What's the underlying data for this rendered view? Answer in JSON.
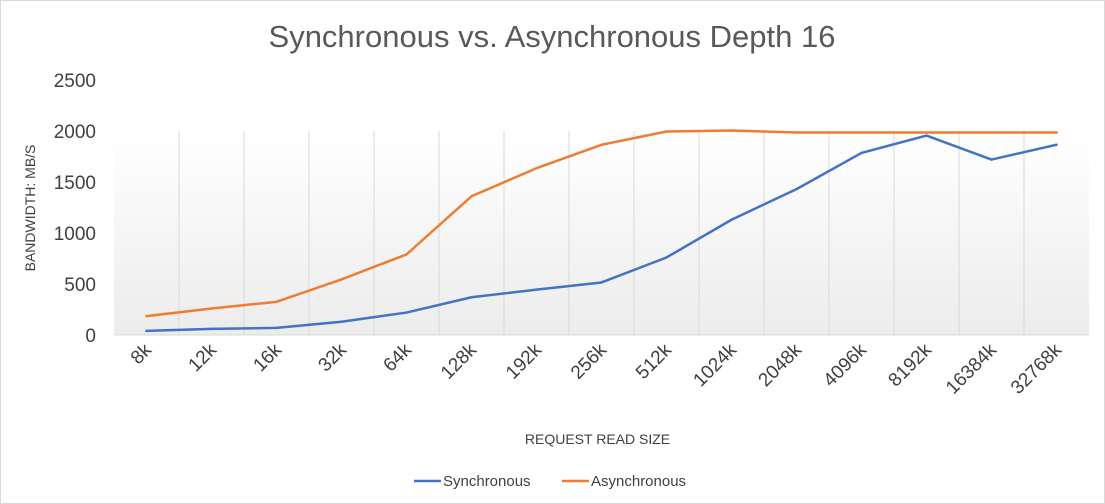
{
  "chart_data": {
    "type": "line",
    "title": "Synchronous vs. Asynchronous Depth 16",
    "xlabel": "REQUEST READ SIZE",
    "ylabel": "BANDWIDTH: MB/S",
    "categories": [
      "8k",
      "12k",
      "16k",
      "32k",
      "64k",
      "128k",
      "192k",
      "256k",
      "512k",
      "1024k",
      "2048k",
      "4096k",
      "8192k",
      "16384k",
      "32768k"
    ],
    "yticks": [
      "0",
      "500",
      "1000",
      "1500",
      "2000",
      "2500"
    ],
    "ylim": [
      0,
      2500
    ],
    "grid": "vertical",
    "legend_position": "bottom",
    "series": [
      {
        "name": "Synchronous",
        "color": "#4472c4",
        "values": [
          40,
          60,
          70,
          130,
          220,
          370,
          445,
          515,
          760,
          1130,
          1430,
          1785,
          1955,
          1720,
          1865
        ]
      },
      {
        "name": "Asynchronous",
        "color": "#ed7d31",
        "values": [
          185,
          260,
          325,
          545,
          790,
          1360,
          1635,
          1865,
          1995,
          2005,
          1985,
          1985,
          1985,
          1985,
          1985
        ]
      }
    ]
  }
}
